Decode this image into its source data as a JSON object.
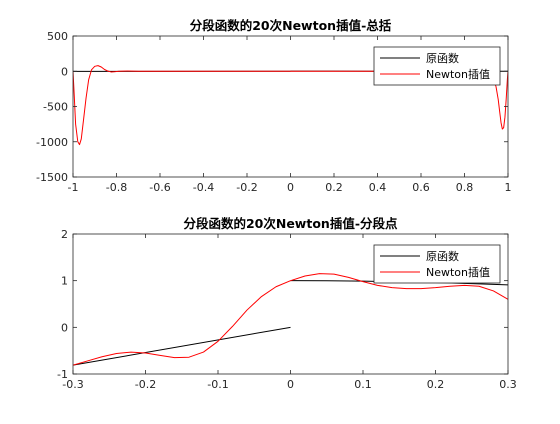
{
  "chart_data": [
    {
      "type": "line",
      "title": "分段函数的20次Newton插值-总括",
      "xlim": [
        -1,
        1
      ],
      "ylim": [
        -1500,
        500
      ],
      "xticks": [
        -1,
        -0.8,
        -0.6,
        -0.4,
        -0.2,
        0,
        0.2,
        0.4,
        0.6,
        0.8,
        1
      ],
      "xtick_labels": [
        "-1",
        "-0.8",
        "-0.6",
        "-0.4",
        "-0.2",
        "0",
        "0.2",
        "0.4",
        "0.6",
        "0.8",
        "1"
      ],
      "yticks": [
        500,
        0,
        -500,
        -1000,
        -1500
      ],
      "ytick_labels": [
        "500",
        "0",
        "-500",
        "-1000",
        "-1500"
      ],
      "grid": false,
      "legend_position": "top-right",
      "series": [
        {
          "name": "原函数",
          "color": "#000000",
          "segments": [
            [
              [
                -1,
                -1.5
              ],
              [
                0,
                0
              ]
            ],
            [
              [
                0,
                1
              ],
              [
                0.2,
                0.96
              ],
              [
                0.4,
                0.84
              ],
              [
                0.6,
                0.64
              ],
              [
                0.8,
                0.36
              ],
              [
                1,
                0
              ]
            ]
          ]
        },
        {
          "name": "Newton插值",
          "color": "#ff0000",
          "points": [
            [
              -1,
              -1.5
            ],
            [
              -0.995,
              -300
            ],
            [
              -0.988,
              -750
            ],
            [
              -0.978,
              -1000
            ],
            [
              -0.97,
              -1040
            ],
            [
              -0.962,
              -960
            ],
            [
              -0.952,
              -700
            ],
            [
              -0.94,
              -380
            ],
            [
              -0.928,
              -120
            ],
            [
              -0.915,
              20
            ],
            [
              -0.9,
              70
            ],
            [
              -0.885,
              80
            ],
            [
              -0.87,
              60
            ],
            [
              -0.855,
              25
            ],
            [
              -0.84,
              3
            ],
            [
              -0.825,
              -10
            ],
            [
              -0.81,
              -8
            ],
            [
              -0.79,
              0
            ],
            [
              -0.75,
              3
            ],
            [
              -0.7,
              0
            ],
            [
              -0.6,
              0
            ],
            [
              -0.3,
              0
            ],
            [
              0,
              0
            ],
            [
              0.3,
              0
            ],
            [
              0.6,
              0
            ],
            [
              0.8,
              0
            ],
            [
              0.88,
              -5
            ],
            [
              0.91,
              -25
            ],
            [
              0.93,
              -80
            ],
            [
              0.945,
              -220
            ],
            [
              0.955,
              -400
            ],
            [
              0.962,
              -580
            ],
            [
              0.968,
              -730
            ],
            [
              0.974,
              -820
            ],
            [
              0.98,
              -800
            ],
            [
              0.986,
              -650
            ],
            [
              0.992,
              -380
            ],
            [
              0.997,
              -120
            ],
            [
              1,
              0
            ]
          ]
        }
      ]
    },
    {
      "type": "line",
      "title": "分段函数的20次Newton插值-分段点",
      "xlim": [
        -0.3,
        0.3
      ],
      "ylim": [
        -1,
        2
      ],
      "xticks": [
        -0.3,
        -0.2,
        -0.1,
        0,
        0.1,
        0.2,
        0.3
      ],
      "xtick_labels": [
        "-0.3",
        "-0.2",
        "-0.1",
        "0",
        "0.1",
        "0.2",
        "0.3"
      ],
      "yticks": [
        2,
        1,
        0,
        -1
      ],
      "ytick_labels": [
        "2",
        "1",
        "0",
        "-1"
      ],
      "grid": false,
      "legend_position": "top-right",
      "series": [
        {
          "name": "原函数",
          "color": "#000000",
          "segments": [
            [
              [
                -0.3,
                -0.81
              ],
              [
                0,
                0
              ]
            ],
            [
              [
                0,
                1
              ],
              [
                0.05,
                0.9975
              ],
              [
                0.1,
                0.99
              ],
              [
                0.15,
                0.9775
              ],
              [
                0.2,
                0.96
              ],
              [
                0.25,
                0.9375
              ],
              [
                0.3,
                0.91
              ]
            ]
          ]
        },
        {
          "name": "Newton插值",
          "color": "#ff0000",
          "points": [
            [
              -0.3,
              -0.81
            ],
            [
              -0.28,
              -0.72
            ],
            [
              -0.26,
              -0.63
            ],
            [
              -0.24,
              -0.56
            ],
            [
              -0.22,
              -0.53
            ],
            [
              -0.2,
              -0.55
            ],
            [
              -0.18,
              -0.6
            ],
            [
              -0.16,
              -0.65
            ],
            [
              -0.14,
              -0.64
            ],
            [
              -0.12,
              -0.53
            ],
            [
              -0.1,
              -0.3
            ],
            [
              -0.08,
              0.02
            ],
            [
              -0.06,
              0.37
            ],
            [
              -0.04,
              0.66
            ],
            [
              -0.02,
              0.87
            ],
            [
              0,
              1.0
            ],
            [
              0.02,
              1.1
            ],
            [
              0.04,
              1.15
            ],
            [
              0.06,
              1.14
            ],
            [
              0.08,
              1.07
            ],
            [
              0.1,
              0.98
            ],
            [
              0.12,
              0.9
            ],
            [
              0.14,
              0.85
            ],
            [
              0.16,
              0.83
            ],
            [
              0.18,
              0.83
            ],
            [
              0.2,
              0.85
            ],
            [
              0.22,
              0.88
            ],
            [
              0.24,
              0.9
            ],
            [
              0.26,
              0.88
            ],
            [
              0.28,
              0.78
            ],
            [
              0.3,
              0.6
            ]
          ]
        }
      ]
    }
  ]
}
